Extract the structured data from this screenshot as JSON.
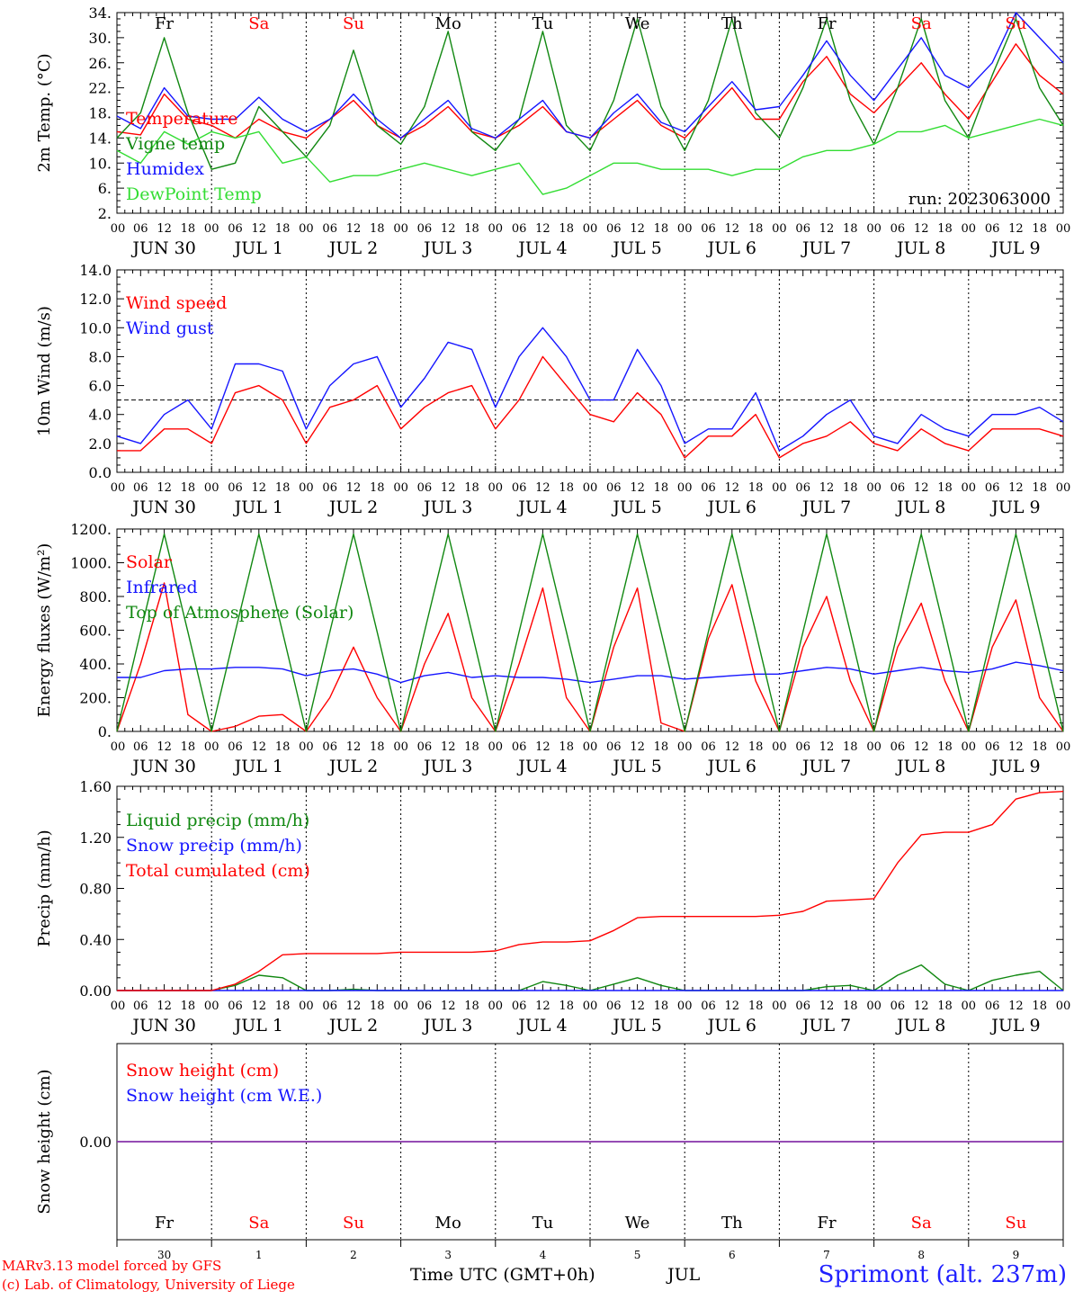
{
  "footer": {
    "model": "MARv3.13 model forced by GFS",
    "lab": "(c) Lab. of Climatology, University of Liege",
    "time_label": "Time UTC (GMT+0h)",
    "month_label": "JUL",
    "station": "Sprimont (alt. 237m)"
  },
  "colors": {
    "red": "#ff0000",
    "green": "#118811",
    "lightgreen": "#33dd33",
    "blue": "#1515ff",
    "purple": "#8833aa",
    "weekday": "#000000",
    "weekend": "#ff0000"
  },
  "chart_data": [
    {
      "type": "line",
      "ylabel": "2m Temp. (°C)",
      "ylim": [
        2,
        34
      ],
      "ytick_labels": [
        "2.",
        "6.",
        "10.",
        "14.",
        "18.",
        "22.",
        "26.",
        "30.",
        "34."
      ],
      "run_label": "run: 2023063000",
      "day_letters": [
        "Fr",
        "Sa",
        "Su",
        "Mo",
        "Tu",
        "We",
        "Th",
        "Fr",
        "Sa",
        "Su"
      ],
      "hour_ticks": [
        "00",
        "06",
        "12",
        "18"
      ],
      "date_labels": [
        "JUN 30",
        "JUL 1",
        "JUL 2",
        "JUL 3",
        "JUL 4",
        "JUL 5",
        "JUL 6",
        "JUL 7",
        "JUL 8",
        "JUL 9"
      ],
      "x_hours": [
        0,
        6,
        12,
        18,
        24,
        30,
        36,
        42,
        48,
        54,
        60,
        66,
        72,
        78,
        84,
        90,
        96,
        102,
        108,
        114,
        120,
        126,
        132,
        138,
        144,
        150,
        156,
        162,
        168,
        174,
        180,
        186,
        192,
        198,
        204,
        210,
        216,
        222,
        228,
        234,
        240
      ],
      "series": [
        {
          "name": "Temperature",
          "color": "red",
          "values": [
            15,
            14.5,
            21,
            17,
            16,
            14,
            17,
            15,
            14,
            17,
            20,
            16,
            14,
            16,
            19,
            15,
            14,
            16,
            19,
            15,
            14,
            17,
            20,
            16,
            14,
            18,
            22,
            17,
            17,
            23,
            27,
            21,
            18,
            22,
            26,
            21,
            17,
            23,
            29,
            24,
            21
          ]
        },
        {
          "name": "Vigne temp",
          "color": "green",
          "values": [
            14,
            18,
            30,
            18,
            9,
            10,
            19,
            15,
            11,
            16,
            28,
            16,
            13,
            19,
            31,
            15,
            12,
            17,
            31,
            16,
            12,
            20,
            33,
            19,
            12,
            20,
            33,
            18,
            14,
            22,
            33,
            20,
            13,
            22,
            33,
            20,
            14,
            24,
            33,
            22,
            16
          ]
        },
        {
          "name": "Humidex",
          "color": "blue",
          "values": [
            17.5,
            15.5,
            22,
            17.5,
            17,
            17,
            20.5,
            17,
            15,
            17,
            21,
            17,
            14,
            17,
            20,
            15.5,
            14,
            17,
            20,
            15,
            14,
            18,
            21,
            16.5,
            15,
            19,
            23,
            18.5,
            19,
            24,
            29.5,
            24,
            20,
            25,
            30,
            24,
            22,
            26,
            34,
            30,
            26
          ]
        },
        {
          "name": "DewPoint Temp",
          "color": "lightgreen",
          "values": [
            12,
            10,
            15,
            13,
            15,
            14,
            15,
            10,
            11,
            7,
            8,
            8,
            9,
            10,
            9,
            8,
            9,
            10,
            5,
            6,
            8,
            10,
            10,
            9,
            9,
            9,
            8,
            9,
            9,
            11,
            12,
            12,
            13,
            15,
            15,
            16,
            14,
            15,
            16,
            17,
            16
          ]
        }
      ]
    },
    {
      "type": "line",
      "ylabel": "10m Wind (m/s)",
      "ylim": [
        0,
        14
      ],
      "ytick_labels": [
        "0.0",
        "2.0",
        "4.0",
        "6.0",
        "8.0",
        "10.0",
        "12.0",
        "14.0"
      ],
      "reference_line": 5,
      "hour_ticks": [
        "00",
        "06",
        "12",
        "18"
      ],
      "date_labels": [
        "JUN 30",
        "JUL 1",
        "JUL 2",
        "JUL 3",
        "JUL 4",
        "JUL 5",
        "JUL 6",
        "JUL 7",
        "JUL 8",
        "JUL 9"
      ],
      "x_hours": [
        0,
        6,
        12,
        18,
        24,
        30,
        36,
        42,
        48,
        54,
        60,
        66,
        72,
        78,
        84,
        90,
        96,
        102,
        108,
        114,
        120,
        126,
        132,
        138,
        144,
        150,
        156,
        162,
        168,
        174,
        180,
        186,
        192,
        198,
        204,
        210,
        216,
        222,
        228,
        234,
        240
      ],
      "series": [
        {
          "name": "Wind speed",
          "color": "red",
          "values": [
            1.5,
            1.5,
            3,
            3,
            2,
            5.5,
            6,
            5,
            2,
            4.5,
            5,
            6,
            3,
            4.5,
            5.5,
            6,
            3,
            5,
            8,
            6,
            4,
            3.5,
            5.5,
            4,
            1,
            2.5,
            2.5,
            4,
            1,
            2,
            2.5,
            3.5,
            2,
            1.5,
            3,
            2,
            1.5,
            3,
            3,
            3,
            2.5
          ]
        },
        {
          "name": "Wind gust",
          "color": "blue",
          "values": [
            2.5,
            2,
            4,
            5,
            3,
            7.5,
            7.5,
            7,
            3,
            6,
            7.5,
            8,
            4.5,
            6.5,
            9,
            8.5,
            4.5,
            8,
            10,
            8,
            5,
            5,
            8.5,
            6,
            2,
            3,
            3,
            5.5,
            1.5,
            2.5,
            4,
            5,
            2.5,
            2,
            4,
            3,
            2.5,
            4,
            4,
            4.5,
            3.5
          ]
        }
      ]
    },
    {
      "type": "line",
      "ylabel": "Energy fluxes (W/m²)",
      "ylim": [
        0,
        1200
      ],
      "ytick_labels": [
        "0.",
        "200.",
        "400.",
        "600.",
        "800.",
        "1000.",
        "1200."
      ],
      "hour_ticks": [
        "00",
        "06",
        "12",
        "18"
      ],
      "date_labels": [
        "JUN 30",
        "JUL 1",
        "JUL 2",
        "JUL 3",
        "JUL 4",
        "JUL 5",
        "JUL 6",
        "JUL 7",
        "JUL 8",
        "JUL 9"
      ],
      "x_hours": [
        0,
        6,
        12,
        18,
        24,
        30,
        36,
        42,
        48,
        54,
        60,
        66,
        72,
        78,
        84,
        90,
        96,
        102,
        108,
        114,
        120,
        126,
        132,
        138,
        144,
        150,
        156,
        162,
        168,
        174,
        180,
        186,
        192,
        198,
        204,
        210,
        216,
        222,
        228,
        234,
        240
      ],
      "series": [
        {
          "name": "Solar",
          "color": "red",
          "values": [
            0,
            400,
            880,
            100,
            0,
            30,
            90,
            100,
            0,
            200,
            500,
            200,
            0,
            400,
            700,
            200,
            0,
            400,
            850,
            200,
            0,
            500,
            850,
            50,
            0,
            550,
            870,
            300,
            0,
            500,
            800,
            300,
            0,
            500,
            760,
            300,
            0,
            500,
            780,
            200,
            0
          ]
        },
        {
          "name": "Infrared",
          "color": "blue",
          "values": [
            320,
            320,
            360,
            370,
            370,
            380,
            380,
            370,
            330,
            360,
            370,
            340,
            290,
            330,
            350,
            320,
            330,
            320,
            320,
            310,
            290,
            310,
            330,
            330,
            310,
            320,
            330,
            340,
            340,
            360,
            380,
            370,
            340,
            360,
            380,
            360,
            350,
            370,
            410,
            390,
            360
          ]
        },
        {
          "name": "Top of Atmosphere (Solar)",
          "color": "green",
          "values": [
            0,
            590,
            1170,
            590,
            0,
            590,
            1170,
            590,
            0,
            590,
            1170,
            590,
            0,
            590,
            1170,
            590,
            0,
            590,
            1170,
            590,
            0,
            590,
            1170,
            590,
            0,
            590,
            1170,
            590,
            0,
            590,
            1170,
            590,
            0,
            590,
            1170,
            590,
            0,
            590,
            1170,
            590,
            0
          ]
        }
      ]
    },
    {
      "type": "line",
      "ylabel": "Precip (mm/h)",
      "ylim": [
        0,
        1.6
      ],
      "ytick_labels": [
        "0.00",
        "0.40",
        "0.80",
        "1.20",
        "1.60"
      ],
      "hour_ticks": [
        "00",
        "06",
        "12",
        "18"
      ],
      "date_labels": [
        "JUN 30",
        "JUL 1",
        "JUL 2",
        "JUL 3",
        "JUL 4",
        "JUL 5",
        "JUL 6",
        "JUL 7",
        "JUL 8",
        "JUL 9"
      ],
      "x_hours": [
        0,
        6,
        12,
        18,
        24,
        30,
        36,
        42,
        48,
        54,
        60,
        66,
        72,
        78,
        84,
        90,
        96,
        102,
        108,
        114,
        120,
        126,
        132,
        138,
        144,
        150,
        156,
        162,
        168,
        174,
        180,
        186,
        192,
        198,
        204,
        210,
        216,
        222,
        228,
        234,
        240
      ],
      "series": [
        {
          "name": "Liquid precip (mm/h)",
          "color": "green",
          "values": [
            0,
            0,
            0,
            0,
            0,
            0.04,
            0.12,
            0.1,
            0,
            0,
            0.01,
            0,
            0,
            0,
            0,
            0,
            0,
            0,
            0.07,
            0.04,
            0,
            0.05,
            0.1,
            0.04,
            0,
            0,
            0,
            0,
            0,
            0,
            0.03,
            0.04,
            0,
            0.12,
            0.2,
            0.05,
            0,
            0.08,
            0.12,
            0.15,
            0
          ]
        },
        {
          "name": "Snow precip (mm/h)",
          "color": "blue",
          "values": [
            0,
            0,
            0,
            0,
            0,
            0,
            0,
            0,
            0,
            0,
            0,
            0,
            0,
            0,
            0,
            0,
            0,
            0,
            0,
            0,
            0,
            0,
            0,
            0,
            0,
            0,
            0,
            0,
            0,
            0,
            0,
            0,
            0,
            0,
            0,
            0,
            0,
            0,
            0,
            0,
            0
          ]
        },
        {
          "name": "Total cumulated (cm)",
          "color": "red",
          "values": [
            0,
            0,
            0,
            0,
            0,
            0.05,
            0.15,
            0.28,
            0.29,
            0.29,
            0.29,
            0.29,
            0.3,
            0.3,
            0.3,
            0.3,
            0.31,
            0.36,
            0.38,
            0.38,
            0.39,
            0.47,
            0.57,
            0.58,
            0.58,
            0.58,
            0.58,
            0.58,
            0.59,
            0.62,
            0.7,
            0.71,
            0.72,
            1,
            1.22,
            1.24,
            1.24,
            1.3,
            1.5,
            1.55,
            1.56
          ]
        }
      ]
    },
    {
      "type": "line",
      "ylabel": "Snow height (cm)",
      "ylim": [
        -1,
        1
      ],
      "ytick_labels": [
        "0.00"
      ],
      "day_letters": [
        "Fr",
        "Sa",
        "Su",
        "Mo",
        "Tu",
        "We",
        "Th",
        "Fr",
        "Sa",
        "Su"
      ],
      "day_numbers": [
        "30",
        "1",
        "2",
        "3",
        "4",
        "5",
        "6",
        "7",
        "8",
        "9"
      ],
      "x_hours": [
        0,
        240
      ],
      "series": [
        {
          "name": "Snow height (cm)",
          "color": "red",
          "values": [
            0,
            0
          ]
        },
        {
          "name": "Snow height (cm W.E.)",
          "color": "blue",
          "values": [
            0,
            0
          ]
        }
      ]
    }
  ]
}
